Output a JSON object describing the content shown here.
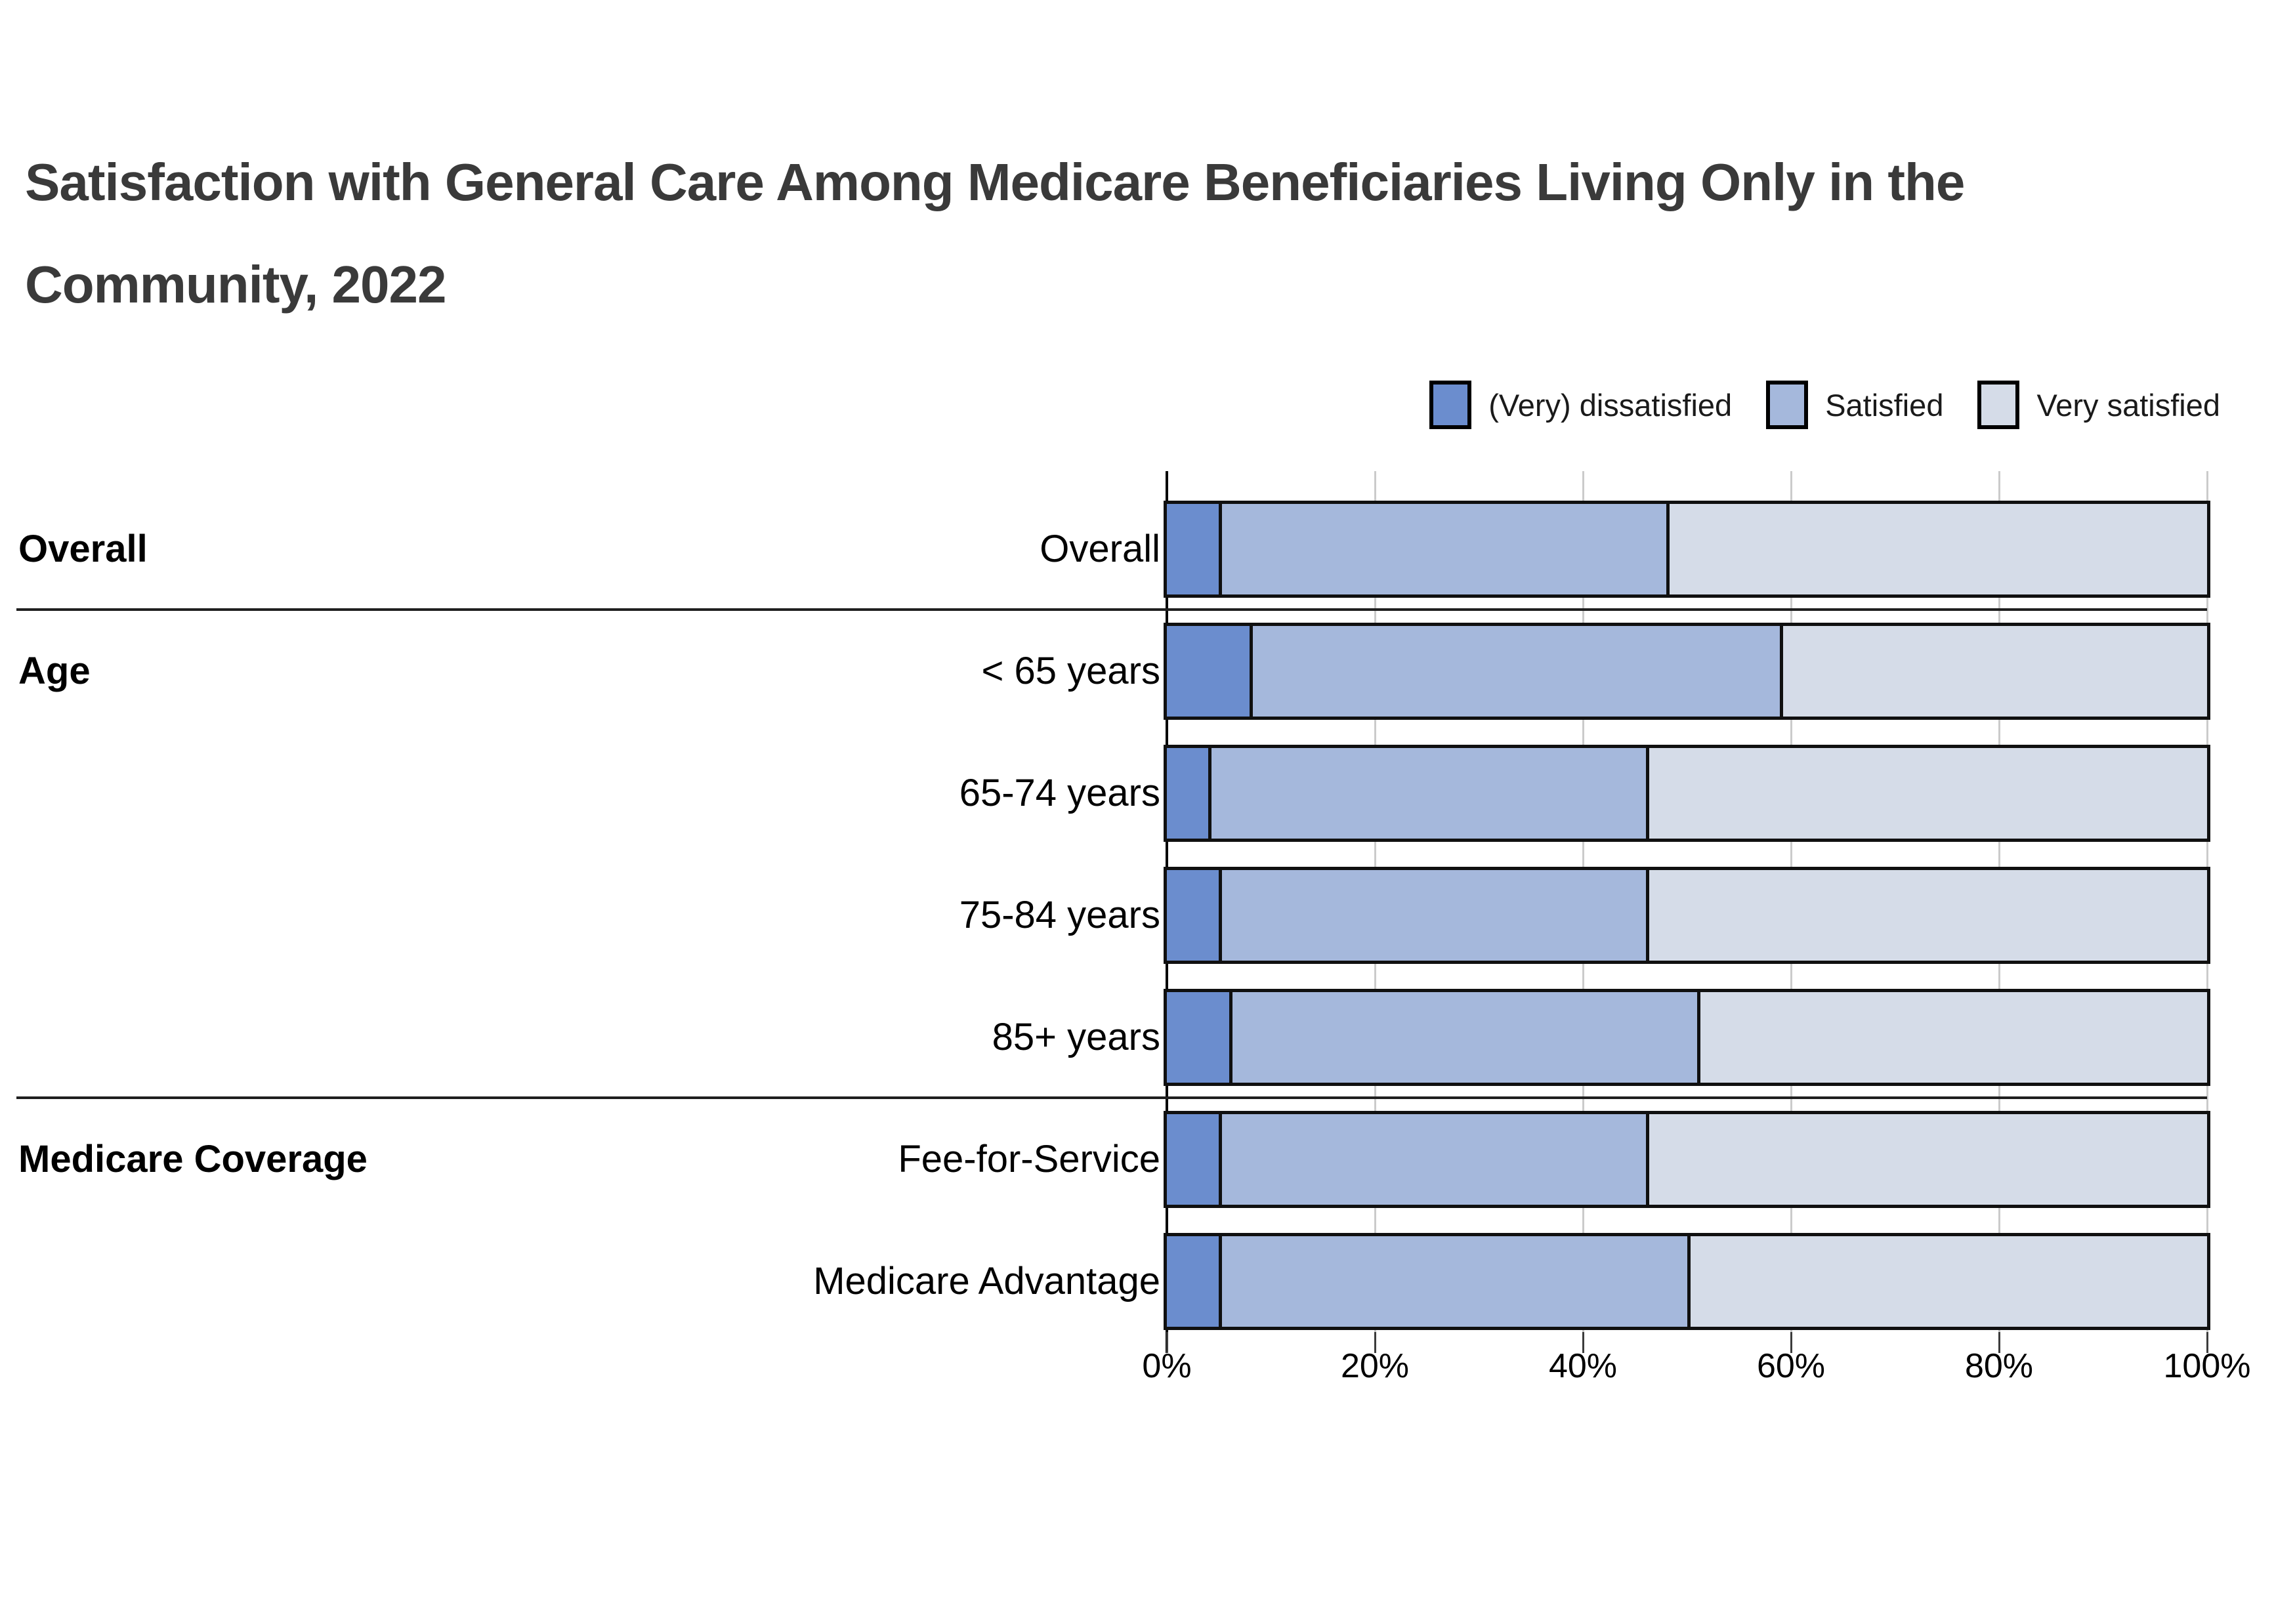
{
  "title_lines": [
    "Satisfaction with General Care Among Medicare Beneficiaries Living Only in the",
    "Community, 2022"
  ],
  "legend": [
    {
      "label": "(Very) dissatisfied",
      "color": "#6b8dce"
    },
    {
      "label": "Satisfied",
      "color": "#a5b8dc"
    },
    {
      "label": "Very satisfied",
      "color": "#d5dce8"
    }
  ],
  "colors": {
    "bar_border": "#101010",
    "grid": "#cbcbcb",
    "axis": "#000000",
    "separator": "#1f1f1f",
    "title": "#3a3a3a"
  },
  "chart_data": {
    "type": "bar",
    "stacked": true,
    "orientation": "horizontal",
    "unit": "percent",
    "series_names": [
      "(Very) dissatisfied",
      "Satisfied",
      "Very satisfied"
    ],
    "x_axis": {
      "range": [
        0,
        100
      ],
      "ticks": [
        "0%",
        "20%",
        "40%",
        "60%",
        "80%",
        "100%"
      ],
      "grid": true
    },
    "legend_position": "top-right",
    "groups": [
      {
        "group": "Overall",
        "rows": [
          {
            "label": "Overall",
            "values": [
              5,
              43,
              52
            ]
          }
        ]
      },
      {
        "group": "Age",
        "rows": [
          {
            "label": "< 65 years",
            "values": [
              8,
              51,
              41
            ]
          },
          {
            "label": "65-74 years",
            "values": [
              4,
              42,
              54
            ]
          },
          {
            "label": "75-84 years",
            "values": [
              5,
              41,
              54
            ]
          },
          {
            "label": "85+ years",
            "values": [
              6,
              45,
              49
            ]
          }
        ]
      },
      {
        "group": "Medicare Coverage",
        "rows": [
          {
            "label": "Fee-for-Service",
            "values": [
              5,
              41,
              54
            ]
          },
          {
            "label": "Medicare Advantage",
            "values": [
              5,
              45,
              50
            ]
          }
        ]
      }
    ]
  }
}
